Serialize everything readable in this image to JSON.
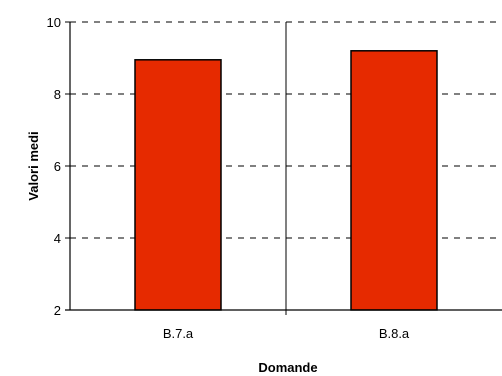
{
  "chart_data": {
    "type": "bar",
    "categories": [
      "B.7.a",
      "B.8.a"
    ],
    "values": [
      8.95,
      9.2
    ],
    "title": "",
    "xlabel": "Domande",
    "ylabel": "Valori medi",
    "ylim": [
      2,
      10
    ],
    "yticks": [
      "2",
      "4",
      "6",
      "8",
      "10"
    ],
    "grid": "horizontal dashed",
    "legend": "none",
    "colors": {
      "bar_fill": "#e62a00",
      "bar_stroke": "#000000",
      "axis": "#000000",
      "grid": "#000000"
    }
  }
}
